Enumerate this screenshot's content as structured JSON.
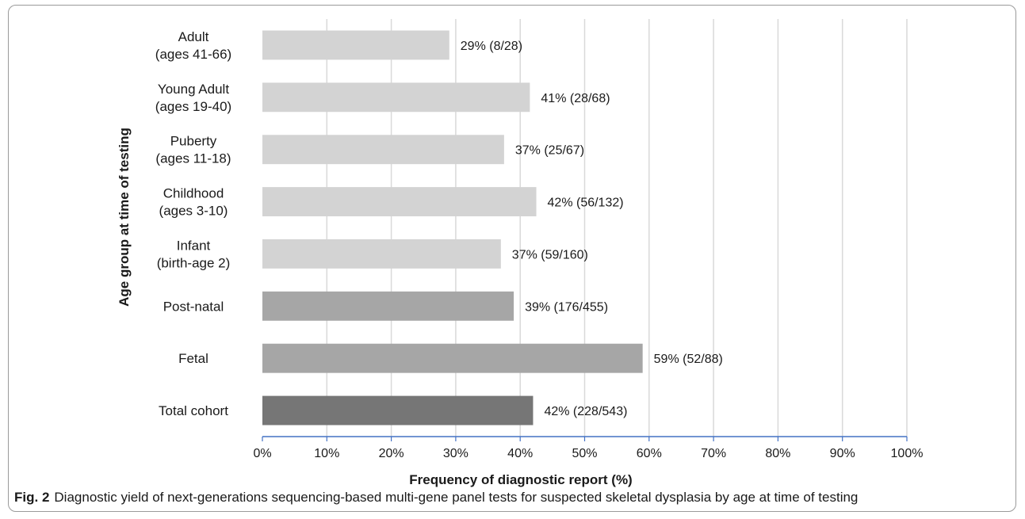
{
  "chart_data": {
    "type": "bar",
    "orientation": "horizontal",
    "ylabel": "Age group at time of testing",
    "xlabel": "Frequency of diagnostic report (%)",
    "xlim": [
      0,
      100
    ],
    "xticks": [
      "0%",
      "10%",
      "20%",
      "30%",
      "40%",
      "50%",
      "60%",
      "70%",
      "80%",
      "90%",
      "100%"
    ],
    "grid": "vertical",
    "categories": [
      {
        "lines": [
          "Adult",
          "(ages 41-66)"
        ],
        "value": 29,
        "label": "29% (8/28)",
        "color": "#d3d3d3"
      },
      {
        "lines": [
          "Young Adult",
          "(ages 19-40)"
        ],
        "value": 41.5,
        "label": "41% (28/68)",
        "color": "#d3d3d3"
      },
      {
        "lines": [
          "Puberty",
          "(ages 11-18)"
        ],
        "value": 37.5,
        "label": "37% (25/67)",
        "color": "#d3d3d3"
      },
      {
        "lines": [
          "Childhood",
          "(ages 3-10)"
        ],
        "value": 42.5,
        "label": "42% (56/132)",
        "color": "#d3d3d3"
      },
      {
        "lines": [
          "Infant",
          "(birth-age  2)"
        ],
        "value": 37,
        "label": "37% (59/160)",
        "color": "#d3d3d3"
      },
      {
        "lines": [
          "Post-natal"
        ],
        "value": 39,
        "label": "39% (176/455)",
        "color": "#a6a6a6"
      },
      {
        "lines": [
          "Fetal"
        ],
        "value": 59,
        "label": "59% (52/88)",
        "color": "#a6a6a6"
      },
      {
        "lines": [
          "Total cohort"
        ],
        "value": 42,
        "label": "42% (228/543)",
        "color": "#767676"
      }
    ]
  },
  "caption": {
    "label": "Fig. 2",
    "text": "Diagnostic yield of next-generations sequencing-based multi-gene panel tests for suspected skeletal dysplasia by age at time of testing"
  }
}
